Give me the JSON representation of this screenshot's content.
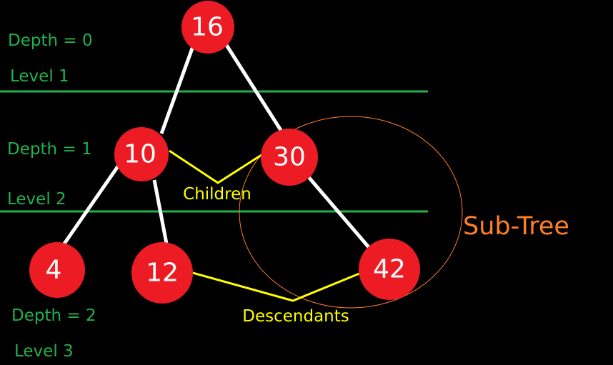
{
  "nodes": [
    {
      "id": "n16",
      "label": "16"
    },
    {
      "id": "n10",
      "label": "10"
    },
    {
      "id": "n30",
      "label": "30"
    },
    {
      "id": "n4",
      "label": "4"
    },
    {
      "id": "n12",
      "label": "12"
    },
    {
      "id": "n42",
      "label": "42"
    }
  ],
  "labels": {
    "depth0": "Depth = 0",
    "level1": "Level 1",
    "depth1": "Depth = 1",
    "level2": "Level 2",
    "depth2": "Depth = 2",
    "level3": "Level 3",
    "children": "Children",
    "descendants": "Descendants",
    "subtree": "Sub-Tree"
  },
  "colors": {
    "background": "#000000",
    "node_fill": "#ed1c24",
    "edge": "#ffffff",
    "level_line": "#22b14c",
    "annotation": "#ffff00",
    "subtree": "#ff7f27"
  }
}
